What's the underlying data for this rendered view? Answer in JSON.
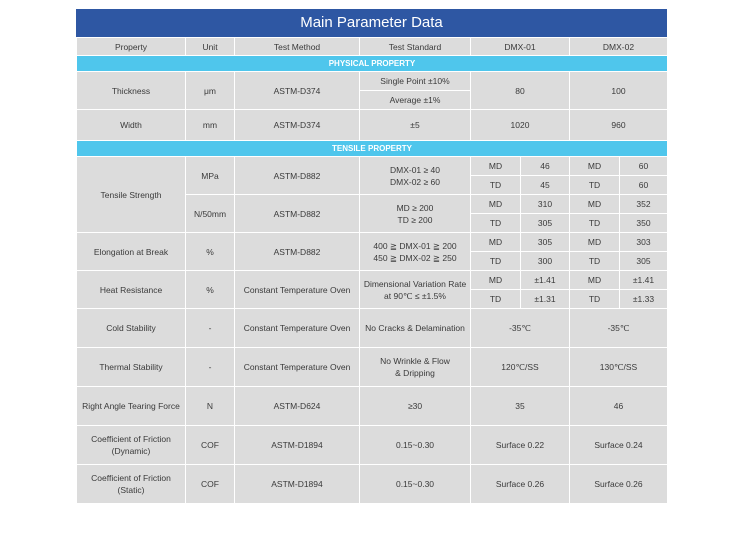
{
  "title": "Main Parameter Data",
  "headers": [
    "Property",
    "Unit",
    "Test Method",
    "Test Standard",
    "DMX-01",
    "DMX-02"
  ],
  "sections": {
    "physical": "PHYSICAL PROPERTY",
    "tensile": "TENSILE PROPERTY"
  },
  "thickness": {
    "property": "Thickness",
    "unit": "μm",
    "method": "ASTM-D374",
    "std1": "Single Point ±10%",
    "std2": "Average ±1%",
    "dmx01": "80",
    "dmx02": "100"
  },
  "width": {
    "property": "Width",
    "unit": "mm",
    "method": "ASTM-D374",
    "std": "±5",
    "dmx01": "1020",
    "dmx02": "960"
  },
  "tensile_strength": {
    "property": "Tensile Strength",
    "mpa": {
      "unit": "MPa",
      "method": "ASTM-D882",
      "std1": "DMX-01 ≥ 40",
      "std2": "DMX-02 ≥ 60",
      "rows": [
        {
          "d1": "MD",
          "v1": "46",
          "d2": "MD",
          "v2": "60"
        },
        {
          "d1": "TD",
          "v1": "45",
          "d2": "TD",
          "v2": "60"
        }
      ]
    },
    "n50": {
      "unit": "N/50mm",
      "method": "ASTM-D882",
      "std1": "MD ≥ 200",
      "std2": "TD ≥ 200",
      "rows": [
        {
          "d1": "MD",
          "v1": "310",
          "d2": "MD",
          "v2": "352"
        },
        {
          "d1": "TD",
          "v1": "305",
          "d2": "TD",
          "v2": "350"
        }
      ]
    }
  },
  "elongation": {
    "property": "Elongation at Break",
    "unit": "%",
    "method": "ASTM-D882",
    "std1": "400 ≧ DMX-01 ≧ 200",
    "std2": "450 ≧ DMX-02 ≧ 250",
    "rows": [
      {
        "d1": "MD",
        "v1": "305",
        "d2": "MD",
        "v2": "303"
      },
      {
        "d1": "TD",
        "v1": "300",
        "d2": "TD",
        "v2": "305"
      }
    ]
  },
  "heat": {
    "property": "Heat Resistance",
    "unit": "%",
    "method": "Constant Temperature Oven",
    "std1": "Dimensional Variation Rate",
    "std2": "at 90℃ ≤ ±1.5%",
    "rows": [
      {
        "d1": "MD",
        "v1": "±1.41",
        "d2": "MD",
        "v2": "±1.41"
      },
      {
        "d1": "TD",
        "v1": "±1.31",
        "d2": "TD",
        "v2": "±1.33"
      }
    ]
  },
  "cold": {
    "property": "Cold Stability",
    "unit": "-",
    "method": "Constant Temperature Oven",
    "std": "No Cracks & Delamination",
    "dmx01": "-35℃",
    "dmx02": "-35℃"
  },
  "thermal": {
    "property": "Thermal Stability",
    "unit": "-",
    "method": "Constant Temperature Oven",
    "std1": "No Wrinkle & Flow",
    "std2": "& Dripping",
    "dmx01": "120℃/SS",
    "dmx02": "130℃/SS"
  },
  "tearing": {
    "property": "Right Angle Tearing Force",
    "unit": "N",
    "method": "ASTM-D624",
    "std": "≥30",
    "dmx01": "35",
    "dmx02": "46"
  },
  "friction_dynamic": {
    "property1": "Coefficient of Friction",
    "property2": "(Dynamic)",
    "unit": "COF",
    "method": "ASTM-D1894",
    "std": "0.15~0.30",
    "dmx01": "Surface 0.22",
    "dmx02": "Surface 0.24"
  },
  "friction_static": {
    "property1": "Coefficient of Friction",
    "property2": "(Static)",
    "unit": "COF",
    "method": "ASTM-D1894",
    "std": "0.15~0.30",
    "dmx01": "Surface 0.26",
    "dmx02": "Surface 0.26"
  }
}
